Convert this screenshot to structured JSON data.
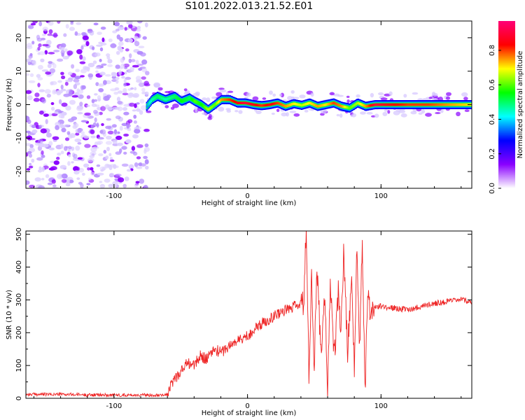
{
  "title": "S101.2022.013.21.52.E01",
  "chart_data": [
    {
      "type": "heatmap",
      "xlabel": "Height of straight line (km)",
      "ylabel": "Frequency (Hz)",
      "xlim": [
        -166,
        168
      ],
      "ylim": [
        -25,
        25
      ],
      "x_ticks": [
        -100,
        0,
        100
      ],
      "y_ticks": [
        20,
        10,
        0,
        -10,
        -20
      ],
      "colorbar": {
        "label": "Normalized spectral amplitude",
        "range": [
          0,
          0.97
        ],
        "ticks": [
          "0.0",
          "0.2",
          "0.4",
          "0.6",
          "0.8"
        ],
        "colors": [
          "#ffffff",
          "#8a00ff",
          "#0000ff",
          "#00ffff",
          "#00ff00",
          "#ffff00",
          "#ff0000",
          "#ff0077"
        ]
      },
      "noise_region": {
        "x": [
          -166,
          -75
        ],
        "y": [
          -25,
          25
        ],
        "amplitude": 0.15
      },
      "signal_trace": {
        "x": [
          -76,
          -72,
          -68,
          -62,
          -55,
          -50,
          -44,
          -40,
          -35,
          -30,
          -25,
          -20,
          -14,
          -8,
          -2,
          4,
          10,
          16,
          22,
          28,
          34,
          40,
          46,
          52,
          58,
          64,
          70,
          76,
          82,
          88,
          95,
          105,
          120,
          135,
          150,
          168
        ],
        "y": [
          -0.5,
          1.5,
          2.5,
          1.5,
          2.5,
          1.0,
          2.0,
          1.0,
          0,
          -1.5,
          0,
          1.5,
          1.5,
          0.5,
          0.5,
          0,
          -0.3,
          0,
          0.5,
          -0.5,
          0.3,
          -0.2,
          0.5,
          -0.5,
          0,
          0.5,
          -0.5,
          -1.0,
          0.5,
          -0.5,
          0,
          0,
          0,
          0,
          0,
          0
        ],
        "amplitude": [
          0.35,
          0.45,
          0.5,
          0.45,
          0.5,
          0.55,
          0.5,
          0.6,
          0.55,
          0.65,
          0.6,
          0.75,
          0.8,
          0.85,
          0.9,
          0.85,
          0.8,
          0.85,
          0.8,
          0.75,
          0.7,
          0.65,
          0.7,
          0.75,
          0.7,
          0.8,
          0.75,
          0.6,
          0.65,
          0.75,
          0.9,
          0.85,
          0.8,
          0.8,
          0.75,
          0.7
        ]
      }
    },
    {
      "type": "line",
      "xlabel": "Height of straight line (km)",
      "ylabel": "SNR (10 * v/v)",
      "xlim": [
        -166,
        168
      ],
      "ylim": [
        0,
        510
      ],
      "x_ticks": [
        -100,
        0,
        100
      ],
      "y_ticks": [
        0,
        100,
        200,
        300,
        400,
        500
      ],
      "color": "#ee2222",
      "series": [
        {
          "x": [
            -166,
            -140,
            -110,
            -85,
            -70,
            -60,
            -55,
            -50,
            -45,
            -40,
            -35,
            -30,
            -25,
            -20,
            -15,
            -10,
            -5,
            0,
            5,
            10,
            15,
            20,
            25,
            30,
            35,
            38,
            40,
            42,
            44,
            46,
            48,
            50,
            52,
            55,
            58,
            60,
            62,
            65,
            68,
            70,
            72,
            75,
            78,
            80,
            82,
            84,
            86,
            88,
            90,
            92,
            95,
            100,
            110,
            120,
            130,
            140,
            150,
            160,
            168
          ],
          "y": [
            12,
            12,
            10,
            10,
            10,
            12,
            60,
            80,
            110,
            100,
            130,
            120,
            150,
            140,
            155,
            170,
            180,
            190,
            210,
            225,
            240,
            250,
            265,
            270,
            280,
            285,
            280,
            290,
            510,
            60,
            380,
            90,
            400,
            150,
            300,
            20,
            360,
            120,
            320,
            200,
            440,
            140,
            380,
            90,
            460,
            150,
            490,
            20,
            330,
            260,
            280,
            280,
            275,
            270,
            280,
            290,
            295,
            300,
            295
          ]
        }
      ]
    }
  ]
}
